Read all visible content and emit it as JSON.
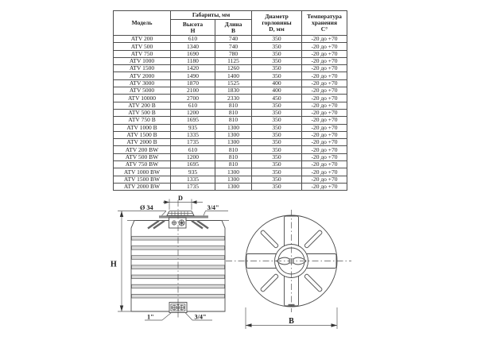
{
  "table": {
    "headers": {
      "model": "Модель",
      "dimensions_group": "Габариты, мм",
      "height": "Высота\nН",
      "length": "Длина\nВ",
      "neck_diameter": "Диаметр\nгорловины\nD, мм",
      "storage_temp": "Температура\nхранения\nС°"
    },
    "rows": [
      [
        "ATV 200",
        "610",
        "740",
        "350",
        "-20 до +70"
      ],
      [
        "ATV 500",
        "1340",
        "740",
        "350",
        "-20 до +70"
      ],
      [
        "ATV 750",
        "1690",
        "780",
        "350",
        "-20 до +70"
      ],
      [
        "ATV 1000",
        "1180",
        "1125",
        "350",
        "-20 до +70"
      ],
      [
        "ATV 1500",
        "1420",
        "1260",
        "350",
        "-20 до +70"
      ],
      [
        "ATV 2000",
        "1490",
        "1400",
        "350",
        "-20 до +70"
      ],
      [
        "ATV 3000",
        "1870",
        "1525",
        "400",
        "-20 до +70"
      ],
      [
        "ATV 5000",
        "2100",
        "1830",
        "400",
        "-20 до +70"
      ],
      [
        "ATV 10000",
        "2700",
        "2330",
        "450",
        "-20 до +70"
      ],
      [
        "ATV 200 B",
        "610",
        "810",
        "350",
        "-20 до +70"
      ],
      [
        "ATV 500 B",
        "1200",
        "810",
        "350",
        "-20 до +70"
      ],
      [
        "ATV 750 B",
        "1695",
        "810",
        "350",
        "-20 до +70"
      ],
      [
        "ATV 1000 B",
        "935",
        "1300",
        "350",
        "-20 до +70"
      ],
      [
        "ATV 1500 B",
        "1335",
        "1300",
        "350",
        "-20 до +70"
      ],
      [
        "ATV 2000 B",
        "1735",
        "1300",
        "350",
        "-20 до +70"
      ],
      [
        "ATV 200 BW",
        "610",
        "810",
        "350",
        "-20 до +70"
      ],
      [
        "ATV 500 BW",
        "1200",
        "810",
        "350",
        "-20 до +70"
      ],
      [
        "ATV 750 BW",
        "1695",
        "810",
        "350",
        "-20 до +70"
      ],
      [
        "ATV 1000 BW",
        "935",
        "1300",
        "350",
        "-20 до +70"
      ],
      [
        "ATV 1500 BW",
        "1335",
        "1300",
        "350",
        "-20 до +70"
      ],
      [
        "ATV 2000 BW",
        "1735",
        "1300",
        "350",
        "-20 до +70"
      ]
    ]
  },
  "drawing": {
    "labels": {
      "lid_diameter": "Ø 34",
      "neck_dimension": "D",
      "top_fitting": "3/4\"",
      "height": "H",
      "bottom_fitting_left": "1\"",
      "bottom_fitting_right": "3/4\"",
      "width": "B"
    }
  }
}
